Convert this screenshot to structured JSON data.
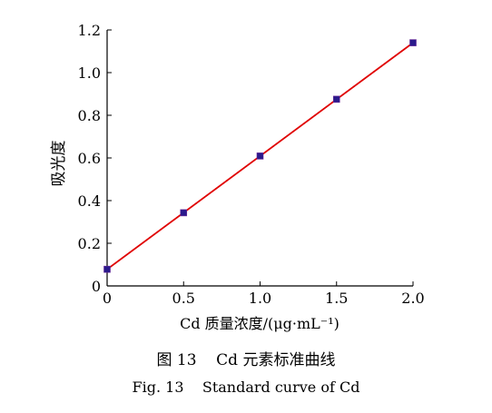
{
  "figure": {
    "caption_cn": "图 13    Cd 元素标准曲线",
    "caption_en": "Fig. 13    Standard curve of Cd"
  },
  "chart_data": {
    "type": "scatter",
    "title": "",
    "xlabel": "Cd 质量浓度/(μg·mL⁻¹)",
    "ylabel": "吸光度",
    "xlim": [
      0,
      2.0
    ],
    "ylim": [
      0,
      1.2
    ],
    "x_ticks": [
      0,
      0.5,
      1.0,
      1.5,
      2.0
    ],
    "x_tick_labels": [
      "0",
      "0.5",
      "1.0",
      "1.5",
      "2.0"
    ],
    "y_ticks": [
      0,
      0.2,
      0.4,
      0.6,
      0.8,
      1.0,
      1.2
    ],
    "y_tick_labels": [
      "0",
      "0.2",
      "0.4",
      "0.6",
      "0.8",
      "1.0",
      "1.2"
    ],
    "grid": false,
    "series": [
      {
        "x": [
          0,
          0.5,
          1.0,
          1.5,
          2.0
        ],
        "y": [
          0.078,
          0.343,
          0.609,
          0.875,
          1.14
        ],
        "marker": "square",
        "marker_color": "#2a1a8c",
        "line_color": "#e00000",
        "fit_line": true
      }
    ]
  }
}
